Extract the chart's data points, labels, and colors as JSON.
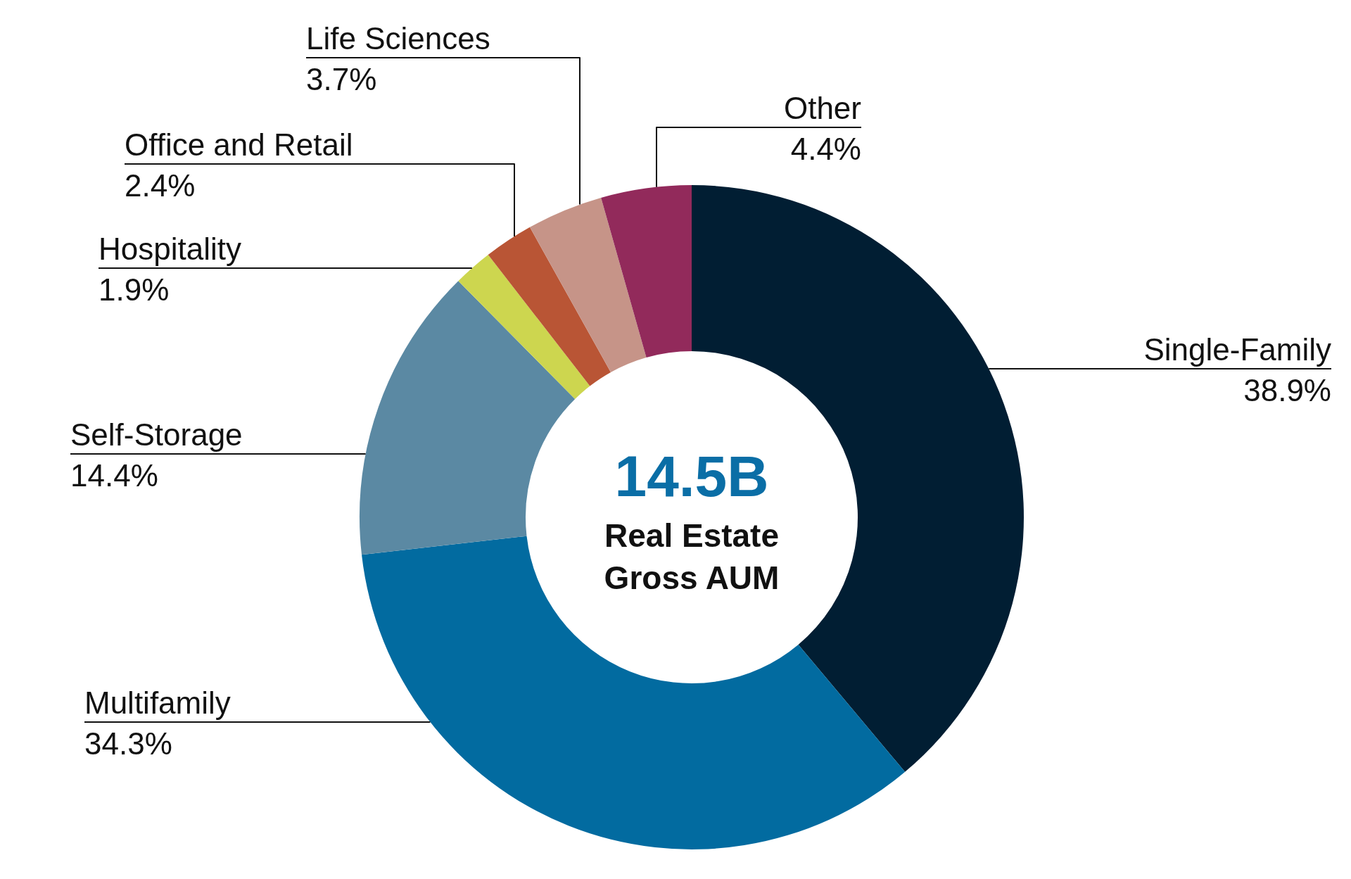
{
  "chart_data": {
    "type": "donut",
    "categories": [
      "Single-Family",
      "Multifamily",
      "Self-Storage",
      "Hospitality",
      "Office and Retail",
      "Life Sciences",
      "Other"
    ],
    "values": [
      38.9,
      34.3,
      14.4,
      1.9,
      2.4,
      3.7,
      4.4
    ],
    "value_labels": [
      "38.9%",
      "34.3%",
      "14.4%",
      "1.9%",
      "2.4%",
      "3.7%",
      "4.4%"
    ],
    "colors": [
      "#011e33",
      "#026ba0",
      "#5b89a3",
      "#cdd64f",
      "#b95535",
      "#c69488",
      "#922a5b"
    ],
    "annotations": [
      "14.5B",
      "Real Estate Gross AUM"
    ],
    "legend": false
  }
}
